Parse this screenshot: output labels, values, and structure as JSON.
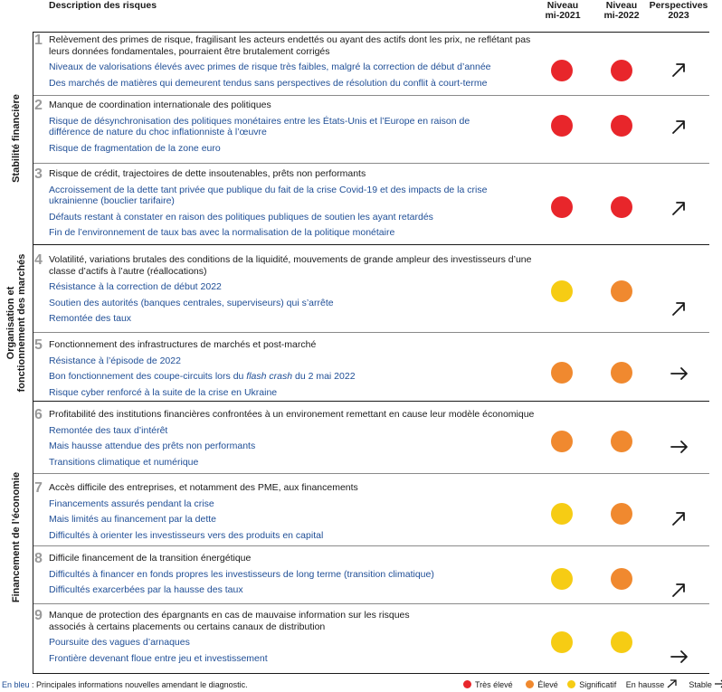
{
  "header": {
    "description": "Description des risques",
    "col_2021": [
      "Niveau",
      "mi-2021"
    ],
    "col_2022": [
      "Niveau",
      "mi-2022"
    ],
    "col_2023": [
      "Perspectives",
      "2023"
    ]
  },
  "categories": [
    {
      "label": "Stabilité financière"
    },
    {
      "label": "Organisation et fonctionnement des marchés"
    },
    {
      "label": "Financement de l’économie"
    }
  ],
  "colors": {
    "tres_eleve": "#e8262b",
    "eleve": "#f0892f",
    "significatif": "#f6cc14",
    "blue_text": "#1f4e96"
  },
  "risks": [
    {
      "num": "1",
      "title": "Relèvement des primes de risque, fragilisant les acteurs endettés ou ayant des actifs dont les prix, ne reflétant pas leurs données fondamentales, pourraient être brutalement corrigés",
      "subs": [
        "Niveaux de valorisations élevés avec primes de risque très faibles,  malgré la correction de début d’année",
        "Des marchés de matières qui demeurent tendus sans perspectives de résolution du conflit à court-terme"
      ],
      "level_2021": "tres_eleve",
      "level_2022": "tres_eleve",
      "outlook": "up"
    },
    {
      "num": "2",
      "title": "Manque de coordination internationale des politiques",
      "subs": [
        "Risque de désynchronisation des politiques monétaires entre les États-Unis et l’Europe en raison de différence de nature du choc inflationniste à l’œuvre",
        "Risque de fragmentation de la zone euro"
      ],
      "level_2021": "tres_eleve",
      "level_2022": "tres_eleve",
      "outlook": "up"
    },
    {
      "num": "3",
      "title": "Risque de crédit, trajectoires de dette insoutenables, prêts non performants",
      "subs": [
        "Accroissement de la dette tant privée que publique du fait de la crise Covid-19 et des impacts de la crise ukrainienne (bouclier tarifaire)",
        "Défauts restant à constater en raison des politiques publiques de soutien les ayant retardés",
        "Fin de l’environnement de taux bas avec la normalisation de la politique monétaire"
      ],
      "level_2021": "tres_eleve",
      "level_2022": "tres_eleve",
      "outlook": "up"
    },
    {
      "num": "4",
      "title": "Volatilité, variations brutales des conditions de la liquidité, mouvements de grande ampleur des investisseurs d’une classe d’actifs à l’autre (réallocations)",
      "subs": [
        "Résistance à la correction de début 2022",
        "Soutien des autorités (banques centrales, superviseurs) qui s’arrête",
        "Remontée des taux"
      ],
      "level_2021": "significatif",
      "level_2022": "eleve",
      "outlook": "up"
    },
    {
      "num": "5",
      "title": "Fonctionnement des infrastructures de marchés et post-marché",
      "subs": [
        "Résistance à l’épisode de 2022",
        "Bon fonctionnement des coupe-circuits lors du flash crash du 2 mai 2022",
        "Risque cyber renforcé à la suite de la crise en Ukraine"
      ],
      "level_2021": "eleve",
      "level_2022": "eleve",
      "outlook": "stable"
    },
    {
      "num": "6",
      "title": "Profitabilité des institutions financières confrontées à un environement remettant en cause leur modèle économique",
      "subs": [
        "Remontée des taux d’intérêt",
        "Mais hausse attendue des prêts non performants",
        "Transitions climatique et numérique"
      ],
      "level_2021": "eleve",
      "level_2022": "eleve",
      "outlook": "stable"
    },
    {
      "num": "7",
      "title": "Accès difficile des entreprises, et notamment des PME, aux financements",
      "subs": [
        "Financements  assurés pendant la crise",
        "Mais limités au financement par la dette",
        "Difficultés à orienter les investisseurs vers des produits en capital"
      ],
      "level_2021": "significatif",
      "level_2022": "eleve",
      "outlook": "up"
    },
    {
      "num": "8",
      "title": "Difficile financement de la transition énergétique",
      "subs": [
        "Difficultés à financer en fonds propres les investisseurs de long terme (transition climatique)",
        "Difficultés exarcerbées par la hausse des taux"
      ],
      "level_2021": "significatif",
      "level_2022": "eleve",
      "outlook": "up"
    },
    {
      "num": "9",
      "title": "Manque de protection des épargnants en cas de mauvaise information sur les risques associés à certains placements ou certains canaux de distribution",
      "subs": [
        "Poursuite des vagues d’arnaques",
        "Frontière devenant floue entre jeu et investissement"
      ],
      "level_2021": "significatif",
      "level_2022": "significatif",
      "outlook": "stable"
    }
  ],
  "footer": {
    "note_blue": "En bleu",
    "note_rest": " : Principales informations nouvelles amendant le diagnostic.",
    "legend_tres_eleve": "Très élevé",
    "legend_eleve": "Élevé",
    "legend_significatif": "Significatif",
    "legend_up": "En hausse",
    "legend_stable": "Stable"
  }
}
